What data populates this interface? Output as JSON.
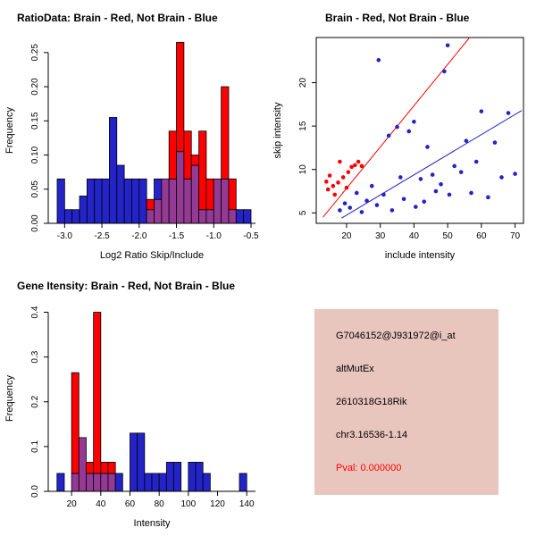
{
  "window": {
    "background": "#FFFFFF"
  },
  "colors": {
    "brain_red": "#FF0000",
    "not_brain_blue": "#2323C8",
    "overlap_purple": "#943A94",
    "axis": "#000000"
  },
  "chart_data": [
    {
      "type": "bar",
      "subtype": "overlaid-histogram",
      "title": "RatioData: Brain - Red, Not Brain - Blue",
      "xlabel": "Log2 Ratio Skip/Include",
      "ylabel": "Frequency",
      "bin_start": -3.1,
      "bin_width": 0.1,
      "xlim": [
        -3.22,
        -0.44
      ],
      "ylim": [
        0,
        0.272
      ],
      "xticks": [
        -3.0,
        -2.5,
        -2.0,
        -1.5,
        -1.0,
        -0.5
      ],
      "xtick_labels": [
        "-3.0",
        "-2.5",
        "-2.0",
        "-1.5",
        "-1.0",
        "-0.5"
      ],
      "yticks": [
        0,
        0.05,
        0.1,
        0.15,
        0.2,
        0.25
      ],
      "ytick_labels": [
        "0.00",
        "0.05",
        "0.10",
        "0.15",
        "0.20",
        "0.25"
      ],
      "series": [
        {
          "name": "Not Brain",
          "color": "#2323C8",
          "values": [
            0.065,
            0.02,
            0.02,
            0.04,
            0.065,
            0.065,
            0.065,
            0.155,
            0.085,
            0.065,
            0.065,
            0.065,
            0.02,
            0.065,
            0.065,
            0.065,
            0.105,
            0.065,
            0.085,
            0.02,
            0.02,
            0.065,
            0.065,
            0.02,
            0.02,
            0.02
          ]
        },
        {
          "name": "Brain",
          "color": "#FF0000",
          "values": [
            0,
            0,
            0,
            0,
            0,
            0,
            0,
            0,
            0,
            0,
            0,
            0,
            0.035,
            0.035,
            0.065,
            0.135,
            0.265,
            0.135,
            0.1,
            0.135,
            0.065,
            0.065,
            0.2,
            0.065,
            0,
            0
          ]
        }
      ]
    },
    {
      "type": "scatter",
      "title": "Brain - Red, Not Brain - Blue",
      "xlabel": "include intensity",
      "ylabel": "skip intensity",
      "xlim": [
        11,
        72.5
      ],
      "ylim": [
        3.8,
        25.2
      ],
      "xticks": [
        20,
        30,
        40,
        50,
        60,
        70
      ],
      "xtick_labels": [
        "20",
        "30",
        "40",
        "50",
        "60",
        "70"
      ],
      "yticks": [
        5,
        10,
        15,
        20
      ],
      "ytick_labels": [
        "5",
        "10",
        "15",
        "20"
      ],
      "series": [
        {
          "name": "Brain",
          "color": "#FF0000",
          "points": [
            [
              14,
              8.6
            ],
            [
              14.5,
              7.7
            ],
            [
              15,
              9.3
            ],
            [
              16,
              8.1
            ],
            [
              16.5,
              7.1
            ],
            [
              17.5,
              8.5
            ],
            [
              18,
              10.9
            ],
            [
              19,
              9.1
            ],
            [
              20,
              7.9
            ],
            [
              20.5,
              9.7
            ],
            [
              21.5,
              10.3
            ],
            [
              22.5,
              10.5
            ],
            [
              23.5,
              10.9
            ],
            [
              24.5,
              10.4
            ]
          ]
        },
        {
          "name": "Not Brain",
          "color": "#2323C8",
          "points": [
            [
              18,
              5.3
            ],
            [
              19.5,
              6.1
            ],
            [
              21,
              5.6
            ],
            [
              23,
              7.3
            ],
            [
              24.5,
              5.1
            ],
            [
              26,
              6.4
            ],
            [
              27.5,
              8.1
            ],
            [
              29,
              5.9
            ],
            [
              29.5,
              22.6
            ],
            [
              31,
              7.1
            ],
            [
              32.5,
              13.9
            ],
            [
              33.5,
              5.3
            ],
            [
              35,
              14.9
            ],
            [
              36,
              9.1
            ],
            [
              37,
              6.6
            ],
            [
              38.5,
              14.4
            ],
            [
              40,
              15.5
            ],
            [
              40.5,
              5.7
            ],
            [
              42,
              8.9
            ],
            [
              43,
              6.3
            ],
            [
              44,
              12.6
            ],
            [
              45.5,
              9.4
            ],
            [
              46.5,
              7.5
            ],
            [
              48,
              8.3
            ],
            [
              49,
              21.3
            ],
            [
              50,
              24.3
            ],
            [
              50.5,
              7.1
            ],
            [
              52,
              10.4
            ],
            [
              54,
              9.7
            ],
            [
              55.5,
              13.3
            ],
            [
              57,
              7.3
            ],
            [
              58.5,
              10.9
            ],
            [
              60,
              16.7
            ],
            [
              62,
              6.8
            ],
            [
              64,
              13.1
            ],
            [
              66,
              9.1
            ],
            [
              68,
              16.5
            ],
            [
              70,
              9.5
            ]
          ]
        }
      ],
      "fit_lines": [
        {
          "name": "brain-fit",
          "color": "#FF0000",
          "x1": 13,
          "y1": 4.5,
          "x2": 56.5,
          "y2": 25.2
        },
        {
          "name": "not-brain-fit",
          "color": "#2323C8",
          "x1": 18.5,
          "y1": 4.4,
          "x2": 72,
          "y2": 16.8
        }
      ]
    },
    {
      "type": "bar",
      "subtype": "overlaid-histogram",
      "title": "Gene Itensity: Brain - Red, Not Brain - Blue",
      "xlabel": "Intensity",
      "ylabel": "Frequency",
      "bin_start": 10,
      "bin_width": 5,
      "xlim": [
        4,
        146
      ],
      "ylim": [
        0,
        0.415
      ],
      "xticks": [
        20,
        40,
        60,
        80,
        100,
        120,
        140
      ],
      "xtick_labels": [
        "20",
        "40",
        "60",
        "80",
        "100",
        "120",
        "140"
      ],
      "yticks": [
        0,
        0.1,
        0.2,
        0.3,
        0.4
      ],
      "ytick_labels": [
        "0.0",
        "0.1",
        "0.2",
        "0.3",
        "0.4"
      ],
      "series": [
        {
          "name": "Not Brain",
          "color": "#2323C8",
          "values": [
            0.04,
            0,
            0.04,
            0.12,
            0.04,
            0.04,
            0.04,
            0.04,
            0.04,
            0,
            0.13,
            0.13,
            0.04,
            0.04,
            0.04,
            0.065,
            0.065,
            0,
            0.065,
            0.065,
            0.04,
            0,
            0,
            0,
            0,
            0.04
          ]
        },
        {
          "name": "Brain",
          "color": "#FF0000",
          "values": [
            0,
            0,
            0.265,
            0.12,
            0.065,
            0.4,
            0.065,
            0.065,
            0,
            0,
            0,
            0,
            0,
            0,
            0,
            0,
            0,
            0,
            0,
            0,
            0,
            0,
            0,
            0,
            0,
            0
          ]
        }
      ]
    }
  ],
  "info": {
    "background": "#E9C6BD",
    "probe_id": "G7046152@J931972@i_at",
    "event_type": "altMutEx",
    "gene_symbol": "2610318G18Rik",
    "location": "chr3.16536-1.14",
    "pval_label": "Pval: 0.000000",
    "pval_color": "#FF0000"
  }
}
